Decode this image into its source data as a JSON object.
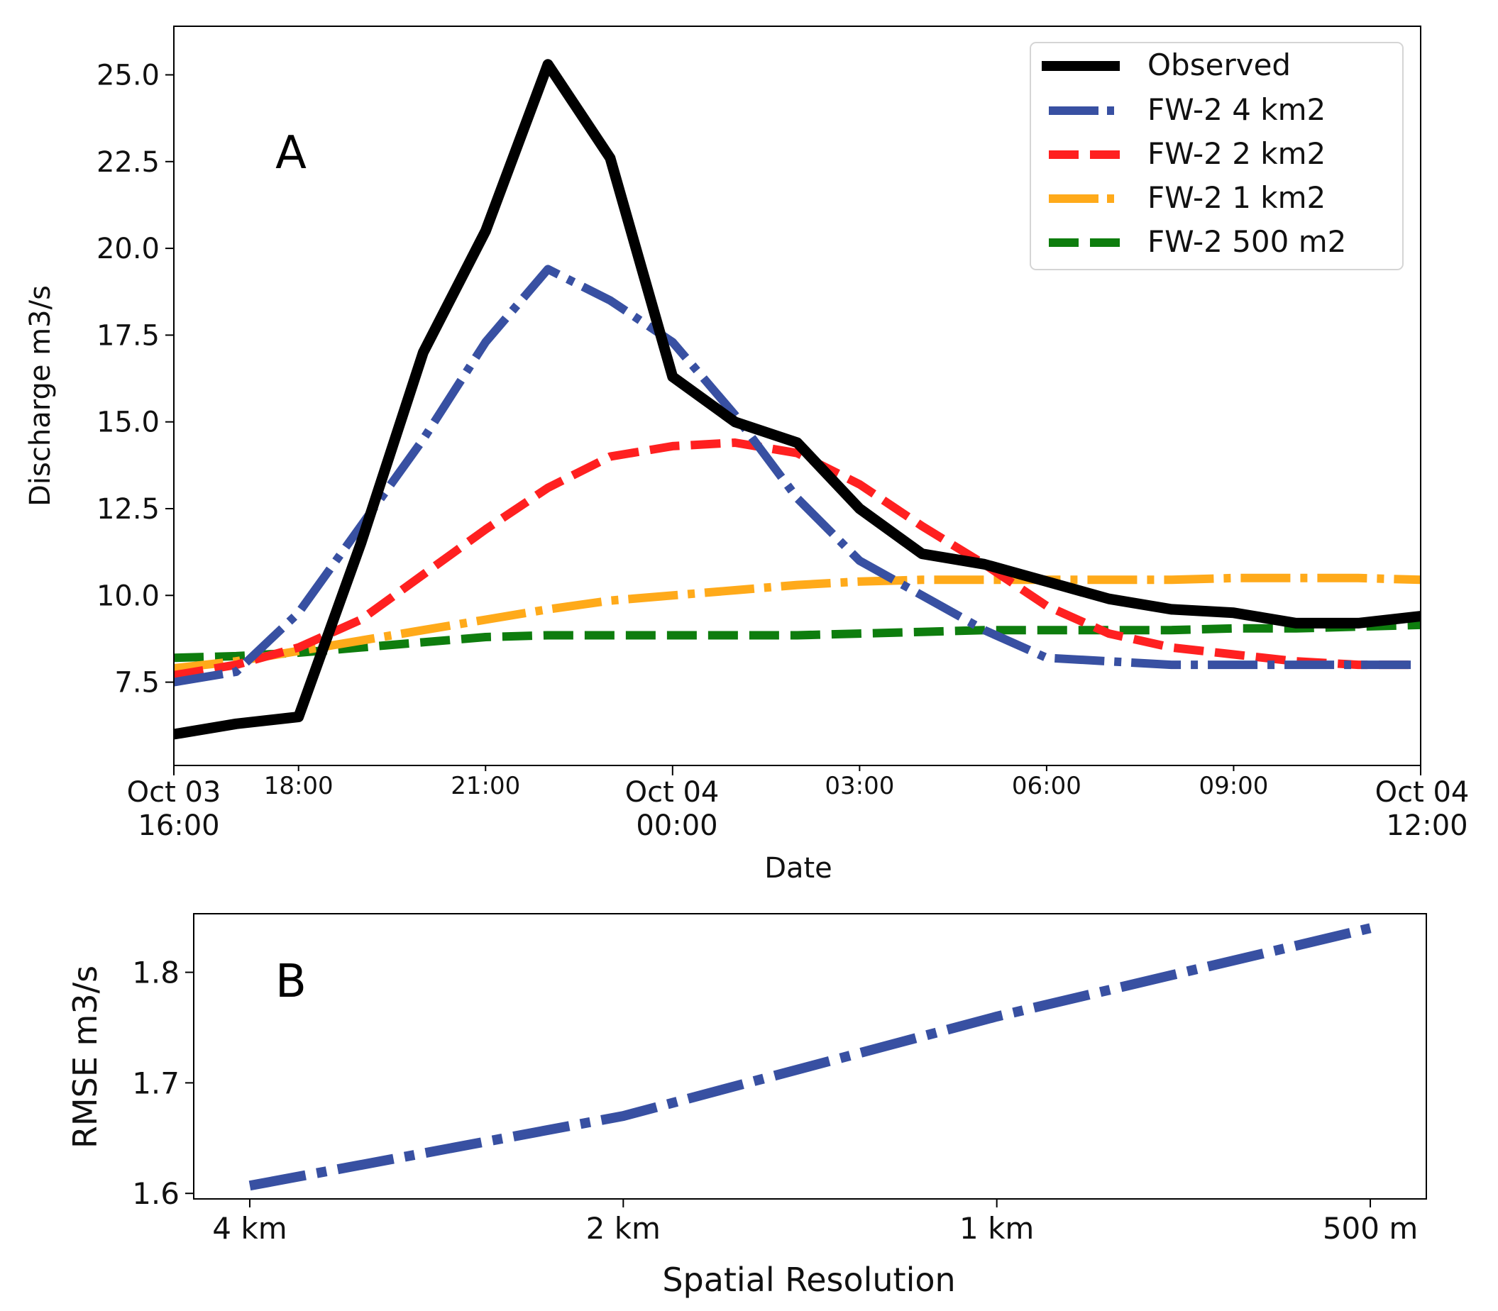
{
  "chart_data": [
    {
      "panel_label": "A",
      "type": "line",
      "xlabel": "Date",
      "ylabel": "Discharge m3/s",
      "x_unit": "hours since Oct 03 16:00",
      "xlim": [
        0,
        20
      ],
      "ylim": [
        5.1,
        26.4
      ],
      "yticks": [
        {
          "value": 7.5,
          "label": "7.5"
        },
        {
          "value": 10.0,
          "label": "10.0"
        },
        {
          "value": 12.5,
          "label": "12.5"
        },
        {
          "value": 15.0,
          "label": "15.0"
        },
        {
          "value": 17.5,
          "label": "17.5"
        },
        {
          "value": 20.0,
          "label": "20.0"
        },
        {
          "value": 22.5,
          "label": "22.5"
        },
        {
          "value": 25.0,
          "label": "25.0"
        }
      ],
      "xticks_major": [
        {
          "value": 0,
          "line1": "Oct 03",
          "line2": "16:00"
        },
        {
          "value": 8,
          "line1": "Oct 04",
          "line2": "00:00"
        },
        {
          "value": 20,
          "line1": "Oct 04",
          "line2": "12:00"
        }
      ],
      "xticks_minor": [
        {
          "value": 2,
          "label": "18:00"
        },
        {
          "value": 5,
          "label": "21:00"
        },
        {
          "value": 11,
          "label": "03:00"
        },
        {
          "value": 14,
          "label": "06:00"
        },
        {
          "value": 17,
          "label": "09:00"
        }
      ],
      "legend_position": "top-right",
      "series": [
        {
          "name": "Observed",
          "color": "#000000",
          "style": "solid",
          "x": [
            0,
            1,
            2,
            3,
            4,
            5,
            6,
            7,
            8,
            9,
            10,
            11,
            12,
            13,
            14,
            15,
            16,
            17,
            18,
            19,
            20
          ],
          "y": [
            6.0,
            6.3,
            6.5,
            11.5,
            17.0,
            20.5,
            25.3,
            22.6,
            16.3,
            15.0,
            14.4,
            12.5,
            11.2,
            10.9,
            10.4,
            9.9,
            9.6,
            9.5,
            9.2,
            9.2,
            9.4
          ]
        },
        {
          "name": "FW-2 4 km2",
          "color": "#3850a2",
          "style": "dashdot",
          "x": [
            0,
            1,
            2,
            3,
            4,
            5,
            6,
            7,
            8,
            9,
            10,
            11,
            12,
            13,
            14,
            15,
            16,
            17,
            18,
            19,
            20
          ],
          "y": [
            7.5,
            7.8,
            9.5,
            12.0,
            14.5,
            17.3,
            19.4,
            18.5,
            17.3,
            15.2,
            12.8,
            11.0,
            10.0,
            9.0,
            8.2,
            8.1,
            8.0,
            8.0,
            8.0,
            8.0,
            8.0
          ]
        },
        {
          "name": "FW-2 2 km2",
          "color": "#ff2020",
          "style": "dashed",
          "x": [
            0,
            1,
            2,
            3,
            4,
            5,
            6,
            7,
            8,
            9,
            10,
            11,
            12,
            13,
            14,
            15,
            16,
            17,
            18,
            19,
            20
          ],
          "y": [
            7.7,
            8.0,
            8.5,
            9.3,
            10.6,
            11.9,
            13.1,
            14.0,
            14.3,
            14.4,
            14.1,
            13.2,
            12.0,
            10.9,
            9.7,
            8.9,
            8.5,
            8.3,
            8.1,
            8.0,
            8.0
          ]
        },
        {
          "name": "FW-2 1 km2",
          "color": "#ffaa1a",
          "style": "dashdot",
          "x": [
            0,
            1,
            2,
            3,
            4,
            5,
            6,
            7,
            8,
            9,
            10,
            11,
            12,
            13,
            14,
            15,
            16,
            17,
            18,
            19,
            20
          ],
          "y": [
            7.9,
            8.1,
            8.4,
            8.7,
            9.0,
            9.3,
            9.6,
            9.85,
            10.0,
            10.15,
            10.3,
            10.4,
            10.45,
            10.45,
            10.45,
            10.45,
            10.45,
            10.5,
            10.5,
            10.5,
            10.45
          ]
        },
        {
          "name": "FW-2 500 m2",
          "color": "#0e7d0e",
          "style": "dashed",
          "x": [
            0,
            1,
            2,
            3,
            4,
            5,
            6,
            7,
            8,
            9,
            10,
            11,
            12,
            13,
            14,
            15,
            16,
            17,
            18,
            19,
            20
          ],
          "y": [
            8.2,
            8.25,
            8.35,
            8.5,
            8.65,
            8.8,
            8.85,
            8.85,
            8.85,
            8.85,
            8.85,
            8.9,
            8.95,
            9.0,
            9.0,
            9.0,
            9.0,
            9.05,
            9.05,
            9.1,
            9.15
          ]
        }
      ]
    },
    {
      "panel_label": "B",
      "type": "line",
      "xlabel": "Spatial Resolution",
      "ylabel": "RMSE m3/s",
      "categories": [
        "4 km",
        "2 km",
        "1 km",
        "500 m"
      ],
      "xlim": [
        -0.15,
        3.15
      ],
      "ylim": [
        1.595,
        1.853
      ],
      "yticks": [
        {
          "value": 1.6,
          "label": "1.6"
        },
        {
          "value": 1.7,
          "label": "1.7"
        },
        {
          "value": 1.8,
          "label": "1.8"
        }
      ],
      "series": [
        {
          "name": "RMSE",
          "color": "#3850a2",
          "style": "dashdot",
          "values": [
            1.607,
            1.67,
            1.76,
            1.84
          ]
        }
      ]
    }
  ]
}
